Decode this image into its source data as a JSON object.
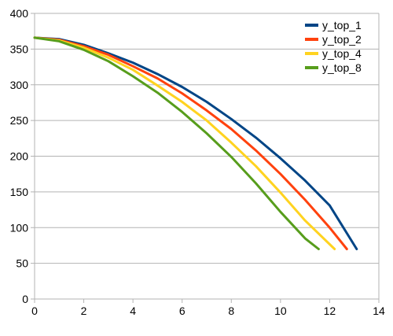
{
  "chart_data": {
    "type": "line",
    "title": "",
    "xlabel": "",
    "ylabel": "",
    "xlim": [
      0,
      14
    ],
    "ylim": [
      0,
      400
    ],
    "xticks": [
      0,
      2,
      4,
      6,
      8,
      10,
      12,
      14
    ],
    "yticks": [
      0,
      50,
      100,
      150,
      200,
      250,
      300,
      350,
      400
    ],
    "grid": "horizontal",
    "legend_position": "top-right",
    "series": [
      {
        "name": "y_top_1",
        "color": "#004586",
        "x": [
          0,
          1,
          2,
          3,
          4,
          5,
          6,
          7,
          8,
          9,
          10,
          11,
          12,
          13.1
        ],
        "y": [
          366,
          364,
          356,
          344,
          331,
          315,
          297,
          276,
          252,
          226,
          197,
          166,
          131,
          70
        ]
      },
      {
        "name": "y_top_2",
        "color": "#ff420e",
        "x": [
          0,
          1,
          2,
          3,
          4,
          5,
          6,
          7,
          8,
          9,
          10,
          11,
          12,
          12.7
        ],
        "y": [
          366,
          363,
          354,
          342,
          326,
          309,
          288,
          264,
          238,
          208,
          175,
          139,
          100,
          70
        ]
      },
      {
        "name": "y_top_4",
        "color": "#ffd320",
        "x": [
          0,
          1,
          2,
          3,
          4,
          5,
          6,
          7,
          8,
          9,
          10,
          11,
          12.2
        ],
        "y": [
          366,
          362,
          352,
          338,
          321,
          299,
          276,
          250,
          219,
          186,
          149,
          110,
          70
        ]
      },
      {
        "name": "y_top_8",
        "color": "#579d1c",
        "x": [
          0,
          1,
          2,
          3,
          4,
          5,
          6,
          7,
          8,
          9,
          10,
          11,
          11.55
        ],
        "y": [
          366,
          361,
          349,
          333,
          312,
          289,
          262,
          232,
          199,
          162,
          122,
          85,
          70
        ]
      }
    ]
  }
}
